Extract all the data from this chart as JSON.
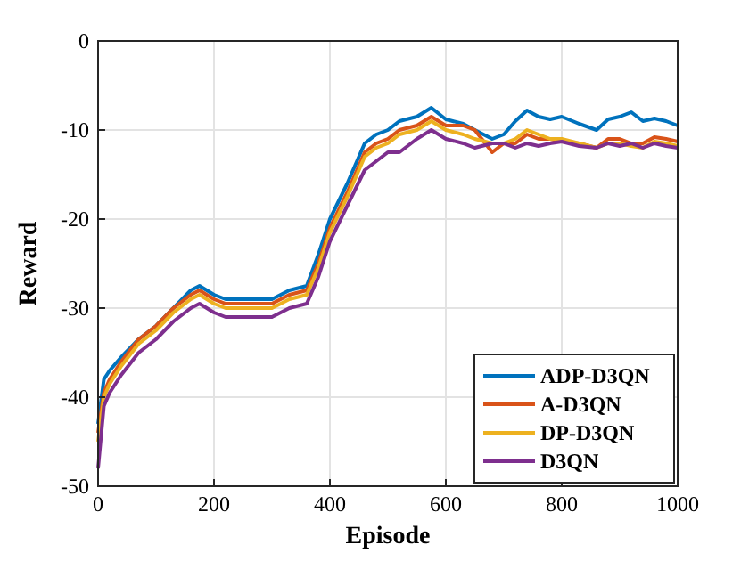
{
  "chart_data": {
    "type": "line",
    "xlabel": "Episode",
    "ylabel": "Reward",
    "xlim": [
      0,
      1000
    ],
    "ylim": [
      -50,
      0
    ],
    "xticks": [
      0,
      200,
      400,
      600,
      800,
      1000
    ],
    "yticks": [
      -50,
      -40,
      -30,
      -20,
      -10,
      0
    ],
    "grid": true,
    "legend": "bottom right",
    "line_style": "solid",
    "marker": "none",
    "x": [
      0,
      10,
      20,
      40,
      70,
      100,
      130,
      160,
      175,
      200,
      220,
      260,
      300,
      330,
      360,
      380,
      400,
      430,
      460,
      480,
      500,
      520,
      550,
      575,
      600,
      630,
      650,
      680,
      700,
      720,
      740,
      760,
      780,
      800,
      830,
      860,
      880,
      900,
      920,
      940,
      960,
      980,
      1000
    ],
    "series": [
      {
        "name": "ADP-D3QN",
        "color": "#0072bd",
        "values": [
          -43,
          -38,
          -37,
          -35.5,
          -33.5,
          -32,
          -30,
          -28,
          -27.5,
          -28.5,
          -29,
          -29,
          -29,
          -28,
          -27.5,
          -24,
          -20,
          -16,
          -11.5,
          -10.5,
          -10,
          -9,
          -8.5,
          -7.5,
          -8.8,
          -9.3,
          -10,
          -11,
          -10.5,
          -9,
          -7.8,
          -8.5,
          -8.8,
          -8.5,
          -9.3,
          -10,
          -8.8,
          -8.5,
          -8,
          -9,
          -8.7,
          -9,
          -9.5
        ]
      },
      {
        "name": "A-D3QN",
        "color": "#d95319",
        "values": [
          -44,
          -39.5,
          -38,
          -36,
          -33.5,
          -32,
          -30,
          -28.5,
          -28,
          -29,
          -29.5,
          -29.5,
          -29.5,
          -28.5,
          -28,
          -25,
          -21,
          -17,
          -12.5,
          -11.5,
          -11,
          -10,
          -9.5,
          -8.5,
          -9.5,
          -9.5,
          -10,
          -12.5,
          -11.5,
          -11.5,
          -10.5,
          -11,
          -11,
          -11.3,
          -11.5,
          -12,
          -11,
          -11,
          -11.5,
          -11.5,
          -10.8,
          -11,
          -11.3
        ]
      },
      {
        "name": "DP-D3QN",
        "color": "#edb120",
        "values": [
          -45,
          -40,
          -38.5,
          -36.5,
          -34,
          -32.5,
          -30.5,
          -29,
          -28.5,
          -29.5,
          -30,
          -30,
          -30,
          -29,
          -28.5,
          -25.5,
          -21.5,
          -17.5,
          -13,
          -12,
          -11.5,
          -10.5,
          -10,
          -9,
          -10,
          -10.5,
          -11,
          -11.5,
          -11.5,
          -11,
          -10,
          -10.5,
          -11,
          -11,
          -11.5,
          -12,
          -11.5,
          -11.5,
          -11.8,
          -12,
          -11.3,
          -11.5,
          -11.8
        ]
      },
      {
        "name": "D3QN",
        "color": "#7e2f8e",
        "values": [
          -48,
          -41,
          -39.5,
          -37.5,
          -35,
          -33.5,
          -31.5,
          -30,
          -29.5,
          -30.5,
          -31,
          -31,
          -31,
          -30,
          -29.5,
          -26.5,
          -22.5,
          -18.5,
          -14.5,
          -13.5,
          -12.5,
          -12.5,
          -11,
          -10,
          -11,
          -11.5,
          -12,
          -11.5,
          -11.5,
          -12,
          -11.5,
          -11.8,
          -11.5,
          -11.3,
          -11.8,
          -12,
          -11.5,
          -11.8,
          -11.5,
          -12,
          -11.5,
          -11.8,
          -12
        ]
      }
    ]
  }
}
